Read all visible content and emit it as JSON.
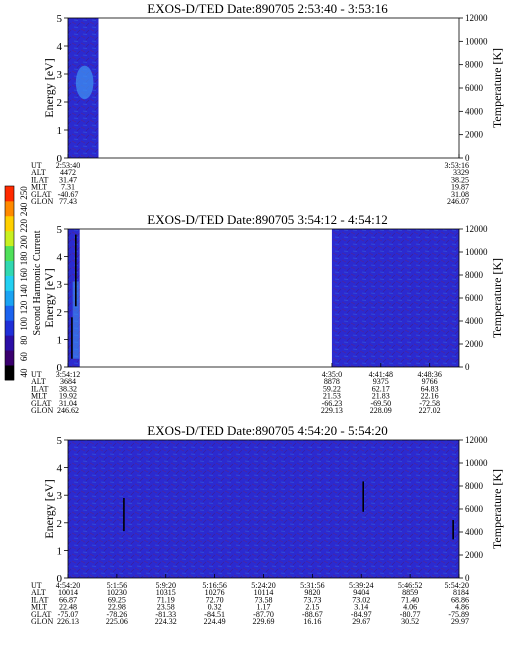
{
  "colorbar": {
    "label": "Second Harmonic Current",
    "ticks": [
      "40",
      "60",
      "80",
      "100",
      "120",
      "140",
      "160",
      "180",
      "200",
      "220",
      "240",
      "250"
    ],
    "colors": [
      "#000000",
      "#3a006e",
      "#2b0fa6",
      "#1f2fd8",
      "#1b63ef",
      "#1aa3f3",
      "#22d0f2",
      "#30d8b0",
      "#4fe05a",
      "#c8f020",
      "#ffd000",
      "#ff8a00",
      "#ff2a00"
    ]
  },
  "colors": {
    "background": "#2b2ad0",
    "stripe": "#3a2aa8",
    "blob": "#3f8ff0",
    "burst": "#000000"
  },
  "chart_data": [
    {
      "type": "heatmap",
      "title": "EXOS-D/TED   Date:890705  2:53:40 - 3:53:16",
      "ylabel": "Energy [eV]",
      "ylabel_right": "Temperature [K]",
      "ylim": [
        0,
        5
      ],
      "yticks": [
        "0",
        "1",
        "2",
        "3",
        "4",
        "5"
      ],
      "ylim_right": [
        0,
        12000
      ],
      "yticks_right": [
        "0",
        "2000",
        "4000",
        "6000",
        "8000",
        "10000",
        "12000"
      ],
      "data_extent_fraction": [
        0,
        0.078
      ],
      "bursts": [],
      "readout": {
        "labels": [
          "UT",
          "ALT",
          "ILAT",
          "MLT",
          "GLAT",
          "GLON"
        ],
        "columns": [
          {
            "pos": 0,
            "values": [
              "2:53:40",
              "4472",
              "31.47",
              "7.31",
              "-40.67",
              "77.43"
            ]
          },
          {
            "pos": 1,
            "values": [
              "3:53:16",
              "3329",
              "38.25",
              "19.87",
              "31.08",
              "246.07"
            ]
          }
        ]
      }
    },
    {
      "type": "heatmap",
      "title": "EXOS-D/TED   Date:890705  3:54:12 - 4:54:12",
      "ylabel": "Energy [eV]",
      "ylabel_right": "Temperature [K]",
      "ylim": [
        0,
        5
      ],
      "yticks": [
        "0",
        "1",
        "2",
        "3",
        "4",
        "5"
      ],
      "ylim_right": [
        0,
        12000
      ],
      "yticks_right": [
        "0",
        "2000",
        "4000",
        "6000",
        "8000",
        "10000",
        "12000"
      ],
      "data_extent_fraction": [
        0,
        0.03
      ],
      "data_extent_fraction_2": [
        0.675,
        1.0
      ],
      "bursts": [
        {
          "x_fraction": 0.01,
          "y_low": 0.3,
          "y_high": 1.8
        },
        {
          "x_fraction": 0.02,
          "y_low": 2.2,
          "y_high": 4.8
        }
      ],
      "readout": {
        "labels": [
          "UT",
          "ALT",
          "ILAT",
          "MLT",
          "GLAT",
          "GLON"
        ],
        "columns": [
          {
            "pos": 0,
            "values": [
              "3:54:12",
              "3684",
              "38.32",
              "19.92",
              "31.04",
              "246.62"
            ]
          },
          {
            "pos": 0.675,
            "values": [
              "4:35:0",
              "8878",
              "59.22",
              "21.53",
              "-66.23",
              "229.13"
            ]
          },
          {
            "pos": 0.8,
            "values": [
              "4:41:48",
              "9375",
              "62.17",
              "21.83",
              "-69.50",
              "228.09"
            ]
          },
          {
            "pos": 0.925,
            "values": [
              "4:48:36",
              "9766",
              "64.83",
              "22.16",
              "-72.58",
              "227.02"
            ]
          }
        ]
      }
    },
    {
      "type": "heatmap",
      "title": "EXOS-D/TED   Date:890705  4:54:20 - 5:54:20",
      "ylabel": "Energy [eV]",
      "ylabel_right": "Temperature [K]",
      "ylim": [
        0,
        5
      ],
      "yticks": [
        "0",
        "1",
        "2",
        "3",
        "4",
        "5"
      ],
      "ylim_right": [
        0,
        12000
      ],
      "yticks_right": [
        "0",
        "2000",
        "4000",
        "6000",
        "8000",
        "10000",
        "12000"
      ],
      "data_extent_fraction": [
        0,
        1.0
      ],
      "bursts": [
        {
          "x_fraction": 0.143,
          "y_low": 1.7,
          "y_high": 2.9
        },
        {
          "x_fraction": 0.755,
          "y_low": 2.4,
          "y_high": 3.5
        },
        {
          "x_fraction": 0.985,
          "y_low": 1.4,
          "y_high": 2.1
        }
      ],
      "readout": {
        "labels": [
          "UT",
          "ALT",
          "ILAT",
          "MLT",
          "GLAT",
          "GLON"
        ],
        "columns": [
          {
            "pos": 0,
            "values": [
              "4:54:20",
              "10014",
              "66.87",
              "22.48",
              "-75.07",
              "226.13"
            ]
          },
          {
            "pos": 0.125,
            "values": [
              "5:1:56",
              "10230",
              "69.25",
              "22.98",
              "-78.26",
              "225.06"
            ]
          },
          {
            "pos": 0.25,
            "values": [
              "5:9:20",
              "10315",
              "71.19",
              "23.58",
              "-81.33",
              "224.32"
            ]
          },
          {
            "pos": 0.375,
            "values": [
              "5:16:56",
              "10276",
              "72.70",
              "0.32",
              "-84.51",
              "224.49"
            ]
          },
          {
            "pos": 0.5,
            "values": [
              "5:24:20",
              "10114",
              "73.58",
              "1.17",
              "-87.70",
              "229.69"
            ]
          },
          {
            "pos": 0.625,
            "values": [
              "5:31:56",
              "9820",
              "73.73",
              "2.15",
              "-88.67",
              "16.16"
            ]
          },
          {
            "pos": 0.75,
            "values": [
              "5:39:24",
              "9404",
              "73.02",
              "3.14",
              "-84.97",
              "29.67"
            ]
          },
          {
            "pos": 0.875,
            "values": [
              "5:46:52",
              "8859",
              "71.40",
              "4.06",
              "-80.77",
              "30.52"
            ]
          },
          {
            "pos": 1,
            "values": [
              "5:54:20",
              "8184",
              "68.86",
              "4.86",
              "-75.89",
              "29.97"
            ]
          }
        ]
      }
    }
  ]
}
